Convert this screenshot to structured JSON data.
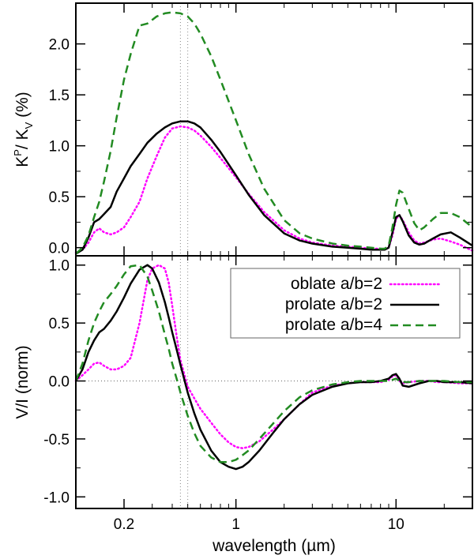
{
  "chart_data": [
    {
      "type": "line",
      "panel": "top",
      "ylabel": "K^P / K_V (%)",
      "xscale": "log",
      "xlim": [
        0.1,
        30
      ],
      "ylim": [
        -0.08,
        2.4
      ],
      "yticks": [
        0.0,
        0.5,
        1.0,
        1.5,
        2.0
      ],
      "ytick_labels": [
        "0.0",
        "0.5",
        "1.0",
        "1.5",
        "2.0"
      ],
      "reference_lines": {
        "vertical_x": [
          0.45,
          0.5
        ]
      },
      "series": [
        {
          "name": "oblate a/b=2",
          "color": "#ff00ff",
          "style": "dotted",
          "x": [
            0.1,
            0.11,
            0.12,
            0.13,
            0.14,
            0.15,
            0.165,
            0.18,
            0.2,
            0.22,
            0.25,
            0.28,
            0.32,
            0.36,
            0.4,
            0.45,
            0.5,
            0.55,
            0.6,
            0.7,
            0.8,
            1.0,
            1.2,
            1.5,
            2.0,
            2.5,
            3.0,
            4.0,
            5.0,
            6.0,
            7.0,
            8.0,
            8.5,
            9.0,
            9.5,
            10.0,
            10.5,
            11.0,
            12.0,
            13.0,
            14.0,
            15.0,
            17.0,
            19.0,
            22.0,
            25.0,
            30.0
          ],
          "y": [
            -0.05,
            -0.02,
            0.05,
            0.15,
            0.19,
            0.15,
            0.13,
            0.15,
            0.2,
            0.3,
            0.45,
            0.68,
            0.9,
            1.08,
            1.17,
            1.19,
            1.18,
            1.15,
            1.1,
            0.99,
            0.88,
            0.69,
            0.53,
            0.35,
            0.17,
            0.09,
            0.05,
            0.02,
            0.01,
            0.0,
            -0.01,
            -0.01,
            -0.01,
            0.0,
            0.12,
            0.28,
            0.32,
            0.27,
            0.15,
            0.07,
            0.04,
            0.05,
            0.08,
            0.09,
            0.06,
            0.03,
            -0.03
          ]
        },
        {
          "name": "prolate a/b=2",
          "color": "#000000",
          "style": "solid",
          "x": [
            0.1,
            0.11,
            0.12,
            0.13,
            0.14,
            0.15,
            0.165,
            0.18,
            0.2,
            0.22,
            0.25,
            0.28,
            0.32,
            0.36,
            0.4,
            0.45,
            0.5,
            0.55,
            0.6,
            0.7,
            0.8,
            1.0,
            1.2,
            1.5,
            2.0,
            2.5,
            3.0,
            4.0,
            5.0,
            6.0,
            7.0,
            8.0,
            8.5,
            9.0,
            9.5,
            10.0,
            10.5,
            11.0,
            12.0,
            13.0,
            14.0,
            15.0,
            17.0,
            19.0,
            22.0,
            25.0,
            30.0
          ],
          "y": [
            -0.06,
            -0.02,
            0.1,
            0.25,
            0.28,
            0.33,
            0.4,
            0.55,
            0.68,
            0.8,
            0.92,
            1.03,
            1.12,
            1.18,
            1.22,
            1.24,
            1.24,
            1.22,
            1.18,
            1.06,
            0.94,
            0.71,
            0.52,
            0.32,
            0.14,
            0.07,
            0.04,
            0.01,
            0.0,
            -0.01,
            -0.02,
            -0.02,
            -0.02,
            0.0,
            0.15,
            0.3,
            0.32,
            0.26,
            0.12,
            0.05,
            0.03,
            0.04,
            0.09,
            0.13,
            0.15,
            0.1,
            0.02
          ]
        },
        {
          "name": "prolate a/b=4",
          "color": "#228b22",
          "style": "dashed",
          "x": [
            0.1,
            0.11,
            0.12,
            0.13,
            0.14,
            0.15,
            0.165,
            0.18,
            0.2,
            0.22,
            0.25,
            0.28,
            0.32,
            0.36,
            0.4,
            0.45,
            0.5,
            0.55,
            0.6,
            0.7,
            0.8,
            1.0,
            1.2,
            1.5,
            2.0,
            2.5,
            3.0,
            4.0,
            5.0,
            6.0,
            7.0,
            8.0,
            8.5,
            9.0,
            9.5,
            10.0,
            10.5,
            11.0,
            12.0,
            13.0,
            14.0,
            15.0,
            17.0,
            19.0,
            22.0,
            25.0,
            30.0
          ],
          "y": [
            -0.06,
            0.0,
            0.12,
            0.3,
            0.45,
            0.65,
            0.95,
            1.28,
            1.65,
            1.9,
            2.18,
            2.2,
            2.27,
            2.3,
            2.31,
            2.3,
            2.27,
            2.2,
            2.1,
            1.88,
            1.65,
            1.25,
            0.92,
            0.58,
            0.27,
            0.14,
            0.09,
            0.04,
            0.02,
            0.01,
            0.0,
            -0.01,
            -0.01,
            0.02,
            0.2,
            0.42,
            0.56,
            0.54,
            0.38,
            0.24,
            0.17,
            0.2,
            0.28,
            0.34,
            0.34,
            0.3,
            0.2
          ]
        }
      ]
    },
    {
      "type": "line",
      "panel": "bottom",
      "xlabel": "wavelength (µm)",
      "ylabel": "V/I (norm)",
      "xscale": "log",
      "xlim": [
        0.1,
        30
      ],
      "ylim": [
        -1.1,
        1.08
      ],
      "xticks": [
        0.2,
        1,
        10
      ],
      "xtick_labels": [
        "0.2",
        "1",
        "10"
      ],
      "yticks": [
        -1.0,
        -0.5,
        0.0,
        0.5,
        1.0
      ],
      "ytick_labels": [
        "-1.0",
        "-0.5",
        "0.0",
        "0.5",
        "1.0"
      ],
      "reference_lines": {
        "horizontal_y": [
          0.0
        ],
        "vertical_x": [
          0.45,
          0.5
        ]
      },
      "legend": {
        "position": "top-right",
        "entries": [
          "oblate a/b=2",
          "prolate a/b=2",
          "prolate a/b=4"
        ]
      },
      "series": [
        {
          "name": "oblate a/b=2",
          "color": "#ff00ff",
          "style": "dotted",
          "x": [
            0.1,
            0.11,
            0.12,
            0.13,
            0.14,
            0.15,
            0.165,
            0.18,
            0.2,
            0.22,
            0.25,
            0.28,
            0.3,
            0.33,
            0.36,
            0.38,
            0.4,
            0.43,
            0.45,
            0.5,
            0.55,
            0.6,
            0.7,
            0.8,
            0.9,
            1.0,
            1.1,
            1.2,
            1.4,
            1.7,
            2.0,
            2.5,
            3.0,
            4.0,
            5.0,
            6.0,
            7.0,
            8.0,
            9.0,
            9.5,
            10.0,
            10.5,
            11.0,
            12.0,
            14.0,
            16.0,
            18.0,
            20.0,
            25.0,
            30.0
          ],
          "y": [
            0.0,
            0.05,
            0.1,
            0.15,
            0.16,
            0.13,
            0.1,
            0.1,
            0.13,
            0.2,
            0.5,
            0.87,
            0.97,
            1.0,
            0.97,
            0.85,
            0.65,
            0.35,
            0.18,
            -0.05,
            -0.15,
            -0.24,
            -0.36,
            -0.46,
            -0.53,
            -0.57,
            -0.58,
            -0.57,
            -0.52,
            -0.42,
            -0.33,
            -0.2,
            -0.1,
            -0.04,
            -0.02,
            -0.01,
            -0.01,
            -0.01,
            0.01,
            0.04,
            0.05,
            0.0,
            -0.02,
            -0.01,
            0.0,
            0.0,
            -0.01,
            -0.01,
            -0.02,
            -0.02
          ]
        },
        {
          "name": "prolate a/b=2",
          "color": "#000000",
          "style": "solid",
          "x": [
            0.1,
            0.11,
            0.12,
            0.13,
            0.14,
            0.15,
            0.165,
            0.18,
            0.2,
            0.22,
            0.25,
            0.28,
            0.3,
            0.33,
            0.36,
            0.38,
            0.4,
            0.43,
            0.45,
            0.5,
            0.55,
            0.6,
            0.7,
            0.8,
            0.9,
            1.0,
            1.1,
            1.2,
            1.4,
            1.7,
            2.0,
            2.5,
            3.0,
            4.0,
            5.0,
            6.0,
            7.0,
            8.0,
            9.0,
            9.5,
            10.0,
            10.5,
            11.0,
            12.0,
            14.0,
            16.0,
            18.0,
            20.0,
            25.0,
            30.0
          ],
          "y": [
            0.0,
            0.1,
            0.25,
            0.35,
            0.42,
            0.45,
            0.52,
            0.6,
            0.72,
            0.84,
            0.96,
            1.0,
            0.97,
            0.85,
            0.68,
            0.55,
            0.42,
            0.25,
            0.14,
            -0.1,
            -0.28,
            -0.42,
            -0.6,
            -0.7,
            -0.74,
            -0.76,
            -0.74,
            -0.7,
            -0.6,
            -0.45,
            -0.33,
            -0.2,
            -0.12,
            -0.05,
            -0.02,
            -0.01,
            -0.01,
            0.0,
            0.02,
            0.05,
            0.06,
            0.02,
            -0.04,
            -0.05,
            -0.02,
            0.0,
            0.0,
            -0.01,
            -0.01,
            -0.02
          ]
        },
        {
          "name": "prolate a/b=4",
          "color": "#228b22",
          "style": "dashed",
          "x": [
            0.1,
            0.11,
            0.12,
            0.13,
            0.14,
            0.15,
            0.165,
            0.18,
            0.2,
            0.22,
            0.25,
            0.28,
            0.3,
            0.33,
            0.36,
            0.38,
            0.4,
            0.43,
            0.45,
            0.5,
            0.55,
            0.6,
            0.7,
            0.8,
            0.9,
            1.0,
            1.1,
            1.2,
            1.4,
            1.7,
            2.0,
            2.5,
            3.0,
            4.0,
            5.0,
            6.0,
            7.0,
            8.0,
            9.0,
            9.5,
            10.0,
            10.5,
            11.0,
            12.0,
            14.0,
            16.0,
            18.0,
            20.0,
            25.0,
            30.0
          ],
          "y": [
            0.0,
            0.15,
            0.35,
            0.5,
            0.6,
            0.68,
            0.75,
            0.82,
            0.92,
            0.99,
            1.0,
            0.9,
            0.78,
            0.6,
            0.4,
            0.28,
            0.15,
            0.0,
            -0.1,
            -0.3,
            -0.45,
            -0.56,
            -0.66,
            -0.7,
            -0.7,
            -0.68,
            -0.64,
            -0.6,
            -0.5,
            -0.37,
            -0.26,
            -0.14,
            -0.08,
            -0.03,
            -0.01,
            0.0,
            0.0,
            0.0,
            0.0,
            0.01,
            0.02,
            0.0,
            -0.01,
            -0.01,
            0.0,
            0.0,
            0.0,
            0.0,
            -0.01,
            -0.01
          ]
        }
      ]
    }
  ]
}
